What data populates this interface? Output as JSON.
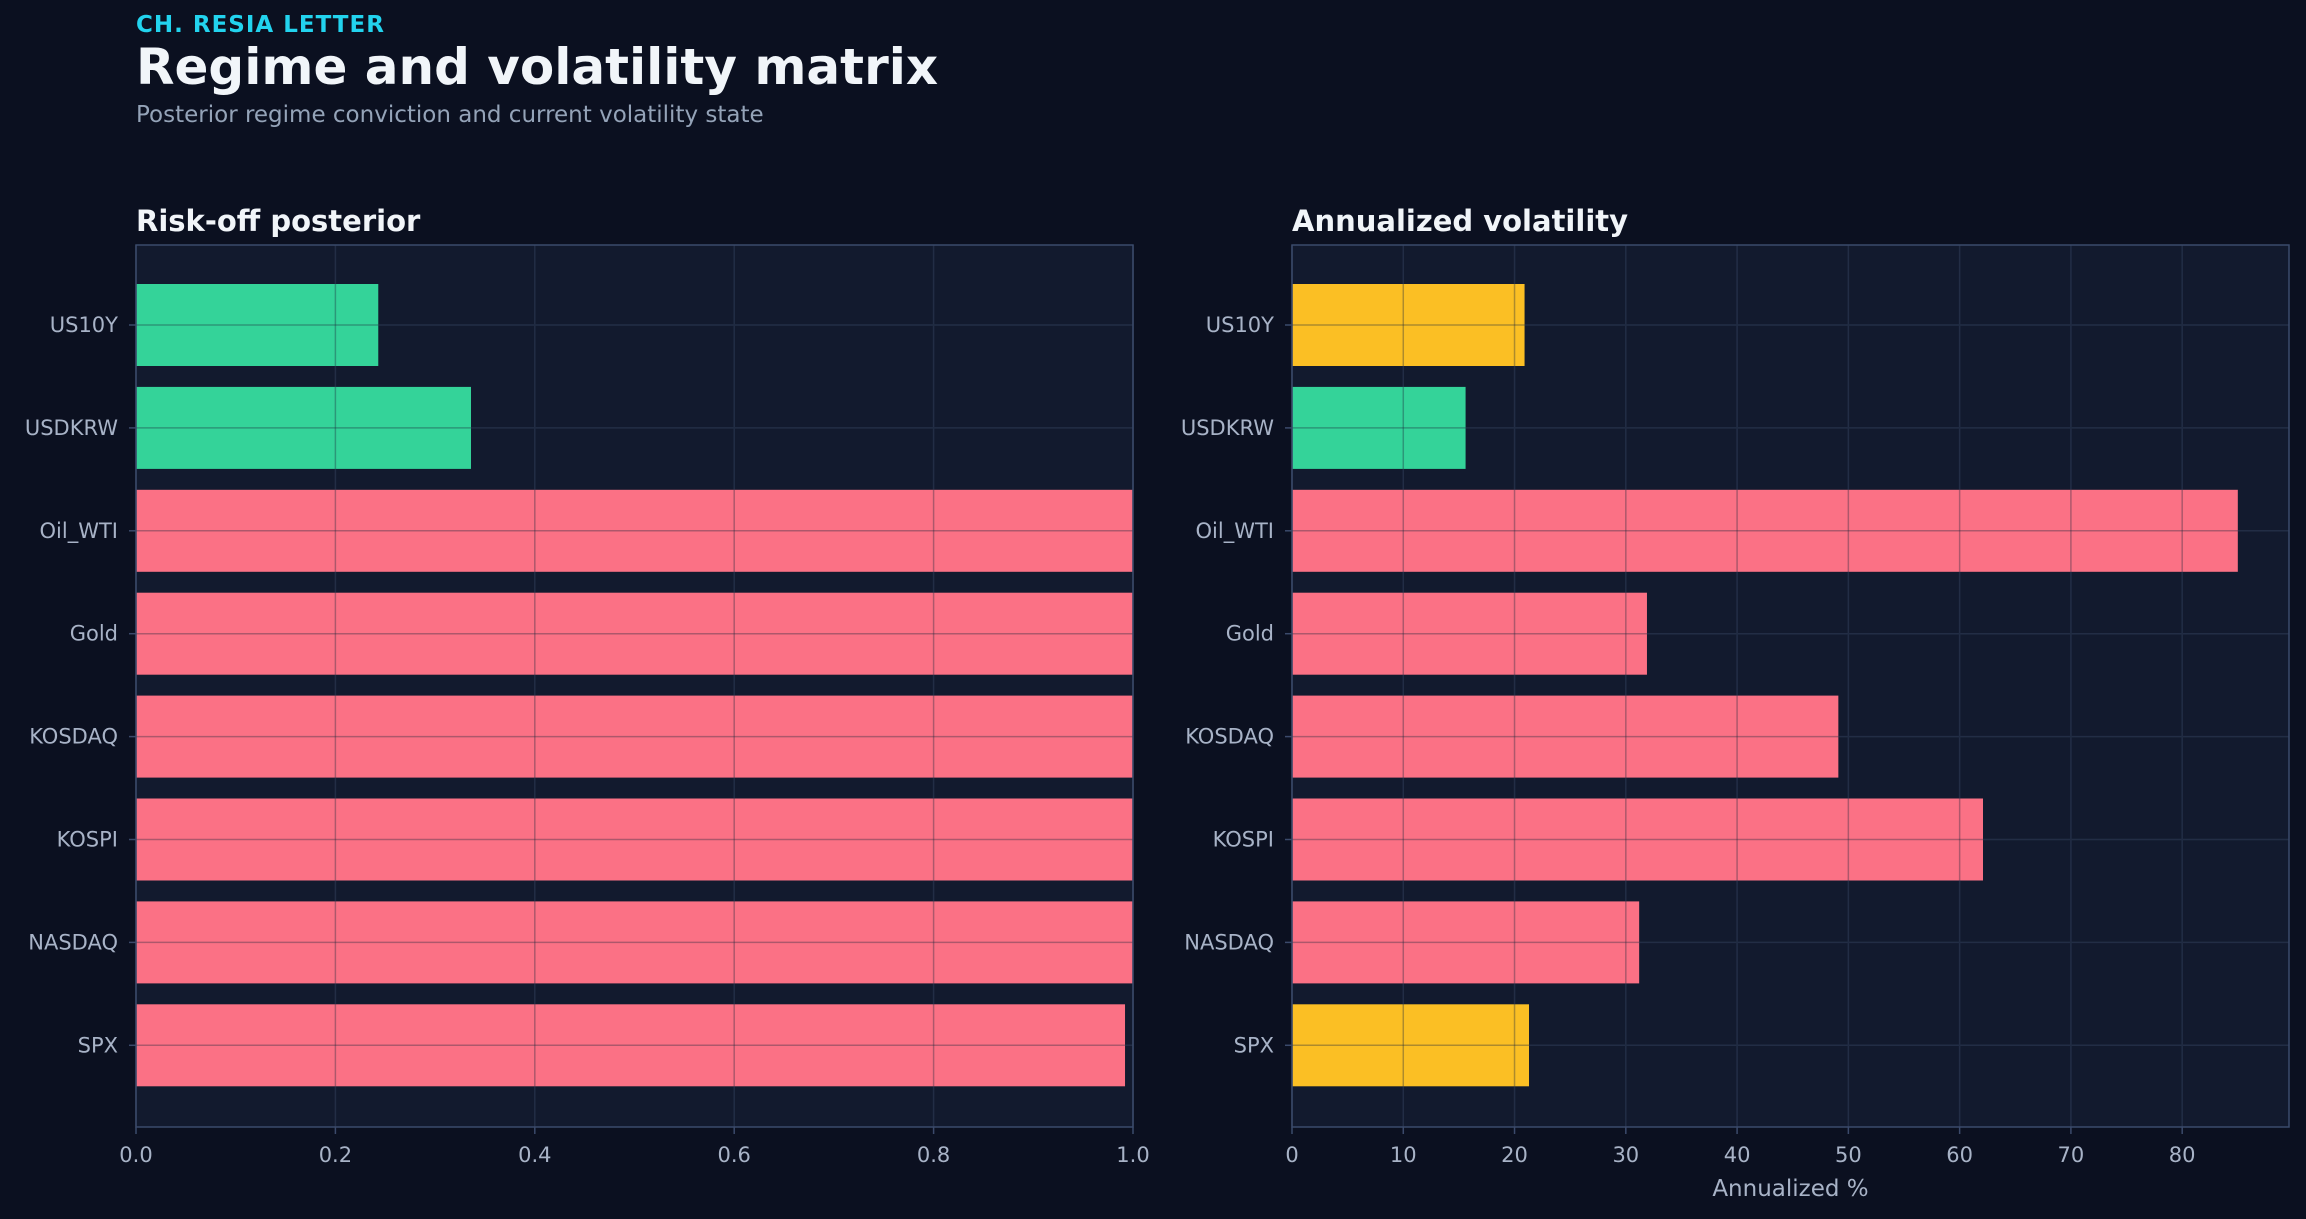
{
  "header": {
    "kicker": "CH. RESIA LETTER",
    "title": "Regime and volatility matrix",
    "subtitle": "Posterior regime conviction and current volatility state"
  },
  "colors": {
    "background": "#0b1020",
    "panel": "#121a2e",
    "accent": "#22d3ee",
    "risk_on": "#34d399",
    "risk_off": "#fb7185",
    "neutral": "#fbbf24",
    "grid": "#25304a",
    "axis": "#3b4a6b"
  },
  "chart_data": [
    {
      "type": "bar",
      "orientation": "horizontal",
      "title": "Risk-off posterior",
      "xlabel": "",
      "ylabel": "",
      "categories": [
        "US10Y",
        "USDKRW",
        "Oil_WTI",
        "Gold",
        "KOSDAQ",
        "KOSPI",
        "NASDAQ",
        "SPX"
      ],
      "values": [
        0.243,
        0.336,
        1.0,
        1.0,
        1.0,
        1.0,
        1.0,
        0.992
      ],
      "bar_colors": [
        "risk_on",
        "risk_on",
        "risk_off",
        "risk_off",
        "risk_off",
        "risk_off",
        "risk_off",
        "risk_off"
      ],
      "xlim": [
        0,
        1.0
      ],
      "xticks": [
        "0.0",
        "0.2",
        "0.4",
        "0.6",
        "0.8",
        "1.0"
      ],
      "xtick_values": [
        0,
        0.2,
        0.4,
        0.6,
        0.8,
        1.0
      ],
      "grid": true
    },
    {
      "type": "bar",
      "orientation": "horizontal",
      "title": "Annualized volatility",
      "xlabel": "Annualized %",
      "ylabel": "",
      "categories": [
        "US10Y",
        "USDKRW",
        "Oil_WTI",
        "Gold",
        "KOSDAQ",
        "KOSPI",
        "NASDAQ",
        "SPX"
      ],
      "values": [
        20.9,
        15.6,
        85.0,
        31.9,
        49.1,
        62.1,
        31.2,
        21.3
      ],
      "bar_colors": [
        "neutral",
        "risk_on",
        "risk_off",
        "risk_off",
        "risk_off",
        "risk_off",
        "risk_off",
        "neutral"
      ],
      "xlim": [
        0,
        89.6
      ],
      "xticks": [
        "0",
        "10",
        "20",
        "30",
        "40",
        "50",
        "60",
        "70",
        "80"
      ],
      "xtick_values": [
        0,
        10,
        20,
        30,
        40,
        50,
        60,
        70,
        80
      ],
      "grid": true
    }
  ]
}
